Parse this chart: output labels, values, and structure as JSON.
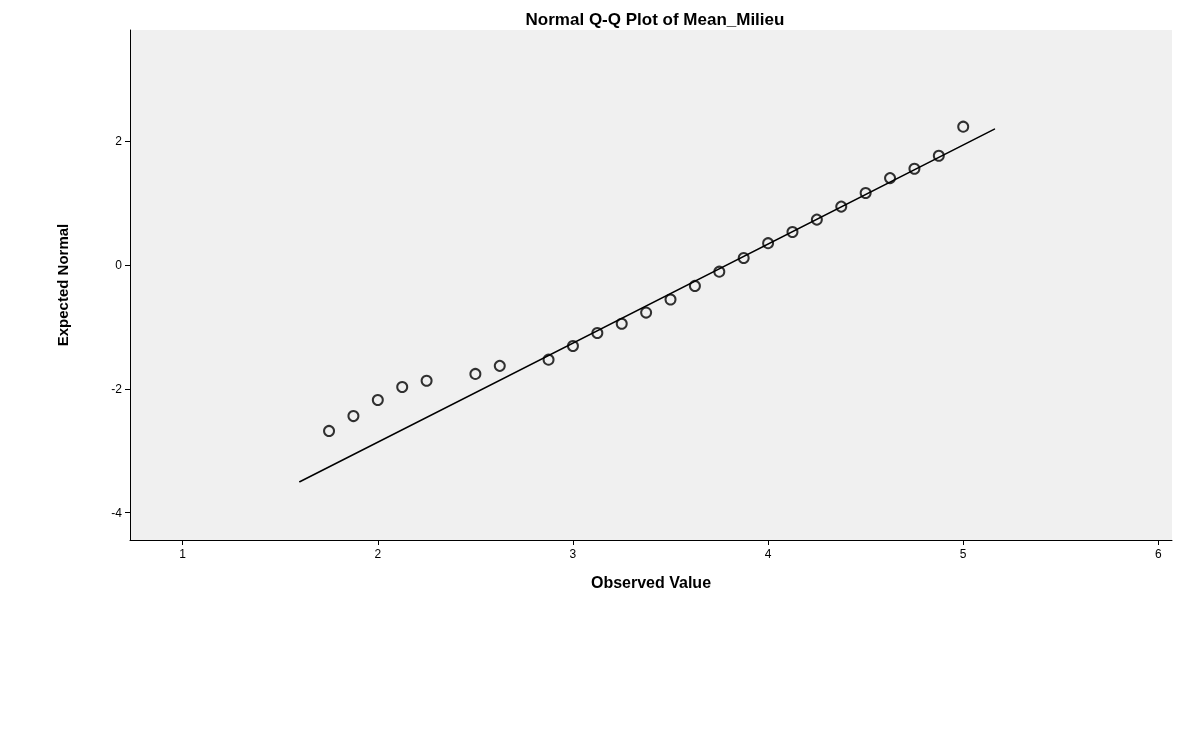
{
  "chart_data": {
    "type": "scatter",
    "title": "Normal Q-Q Plot of Mean_Milieu",
    "xlabel": "Observed Value",
    "ylabel": "Expected Normal",
    "x": [
      1.75,
      1.875,
      2.0,
      2.125,
      2.25,
      2.5,
      2.625,
      2.875,
      3.0,
      3.125,
      3.25,
      3.375,
      3.5,
      3.625,
      3.75,
      3.875,
      4.0,
      4.125,
      4.25,
      4.375,
      4.5,
      4.625,
      4.75,
      4.875,
      5.0
    ],
    "series": [
      {
        "color": "#000000",
        "marker": "circle",
        "values": [
          -2.68,
          -2.44,
          -2.18,
          -1.97,
          -1.87,
          -1.76,
          -1.63,
          -1.53,
          -1.31,
          -1.1,
          -0.95,
          -0.77,
          -0.56,
          -0.34,
          -0.11,
          0.11,
          0.35,
          0.53,
          0.73,
          0.94,
          1.16,
          1.4,
          1.55,
          1.76,
          2.23
        ]
      },
      {
        "type": "line",
        "color": "#000000",
        "marker": "none",
        "x": [
          1.6,
          5.16
        ],
        "values": [
          -3.5,
          2.19
        ]
      }
    ],
    "xlim": [
      0.73,
      6.07
    ],
    "xticks": [
      1,
      2,
      3,
      4,
      5,
      6
    ],
    "ylim": [
      -4.44,
      3.79
    ],
    "yticks": [
      -4,
      -2,
      0,
      2
    ],
    "grid": false
  }
}
